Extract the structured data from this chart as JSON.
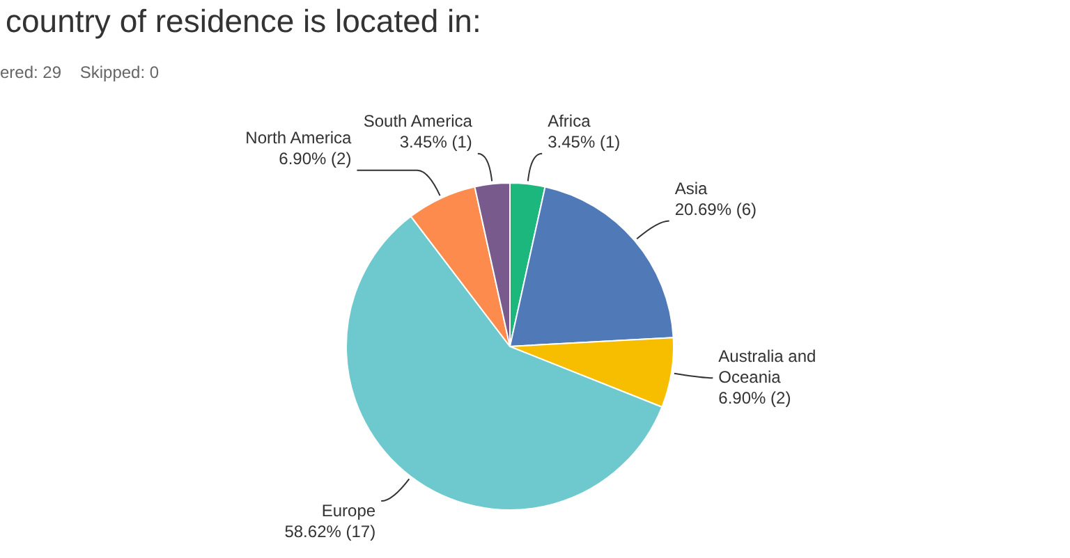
{
  "chart_data": {
    "type": "pie",
    "title": "country of residence is located in:",
    "subtitle": "ered: 29    Skipped: 0",
    "categories": [
      "Africa",
      "Asia",
      "Australia and Oceania",
      "Europe",
      "North America",
      "South America"
    ],
    "values": [
      3.45,
      20.69,
      6.9,
      58.62,
      6.9,
      3.45
    ],
    "colors": [
      "#1bb77d",
      "#4f7ab7",
      "#f7be00",
      "#6dc9cd",
      "#fe8b4e",
      "#785a8c"
    ],
    "value_labels": [
      "3.45% (1)",
      "20.69% (6)",
      "6.90% (2)",
      "58.62% (17)",
      "6.90% (2)",
      "3.45% (1)"
    ],
    "legend": false
  }
}
